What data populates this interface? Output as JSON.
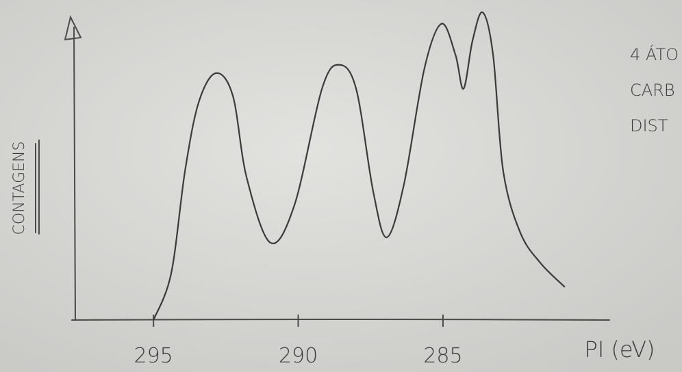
{
  "chart_data": {
    "type": "line",
    "x_label": "PI (eV)",
    "y_label": "CONTAGENS",
    "annotations": [
      "4 ÁTO",
      "CARB",
      "DIST"
    ],
    "x": [
      295.0,
      294.39,
      293.91,
      293.44,
      292.85,
      292.26,
      291.78,
      290.96,
      290.13,
      289.18,
      288.59,
      288.0,
      287.41,
      286.94,
      286.35,
      285.64,
      285.05,
      284.57,
      284.29,
      283.98,
      283.63,
      283.27,
      282.92,
      282.33,
      281.62,
      280.79
    ],
    "values": [
      0,
      15.5,
      49.8,
      72.6,
      82.4,
      74.9,
      47.5,
      25.8,
      38.4,
      77.2,
      85.2,
      77.2,
      42.9,
      27.6,
      45.2,
      84.0,
      98.9,
      88.6,
      77.2,
      93.2,
      102.7,
      88.6,
      49.8,
      29.2,
      18.9,
      11.0
    ],
    "color": "#3a3a3a",
    "xlim": [
      297.7,
      279.25
    ],
    "xticks": [
      295,
      290,
      285
    ],
    "ylim": [
      0,
      105
    ]
  }
}
